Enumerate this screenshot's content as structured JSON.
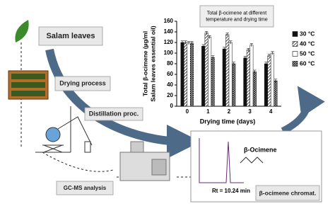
{
  "labels": {
    "salam": "Salam leaves",
    "drying": "Drying process",
    "distillation": "Distillation proc.",
    "gcms": "GC-MS analysis",
    "chromat": "β-ocimene chromat.",
    "peak": "β-Ocimene",
    "rt": "Rt = 10.24 min"
  },
  "chart_data": {
    "type": "bar",
    "title": "Total β-ocimene at different temperature and drying time",
    "y_label": "Total β-ocimene (µg/ml Salam leaves essential oil)",
    "x_label": "Drying time (days)",
    "categories": [
      "0",
      "1",
      "2",
      "3",
      "4"
    ],
    "series": [
      {
        "name": "30 °C",
        "color": "#111111",
        "pattern": "solid",
        "values": [
          120,
          113,
          108,
          91,
          80
        ],
        "errors": [
          3,
          3,
          3,
          3,
          3
        ]
      },
      {
        "name": "40 °C",
        "color": "#111111",
        "pattern": "hatch",
        "values": [
          120,
          138,
          135,
          106,
          95
        ],
        "errors": [
          3,
          3,
          3,
          3,
          3
        ]
      },
      {
        "name": "50 °C",
        "color": "#111111",
        "pattern": "none",
        "values": [
          119,
          130,
          120,
          115,
          100
        ],
        "errors": [
          3,
          3,
          3,
          3,
          3
        ]
      },
      {
        "name": "60 °C",
        "color": "#111111",
        "pattern": "cross",
        "values": [
          119,
          92,
          80,
          65,
          48
        ],
        "errors": [
          3,
          3,
          3,
          3,
          3
        ]
      }
    ],
    "ylim": [
      0,
      160
    ],
    "yticks": [
      0,
      20,
      40,
      60,
      80,
      100,
      120,
      140,
      160
    ],
    "legend": "right"
  }
}
